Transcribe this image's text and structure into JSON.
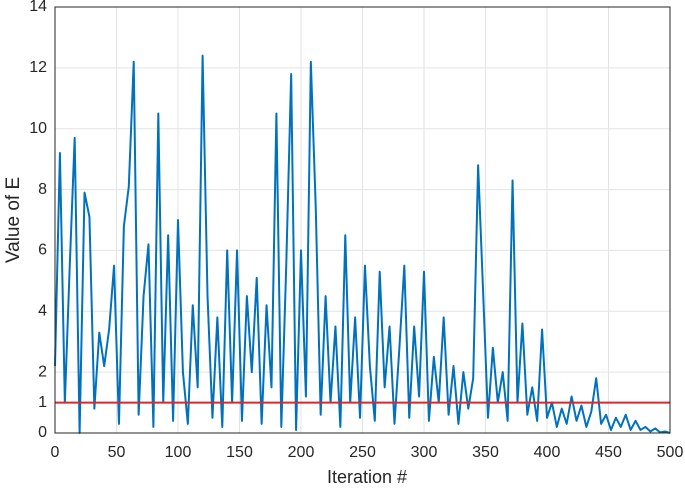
{
  "chart_data": {
    "type": "line",
    "xlabel": "Iteration #",
    "ylabel": "Value of E",
    "x": [
      0,
      4,
      8,
      12,
      16,
      20,
      24,
      28,
      32,
      36,
      40,
      44,
      48,
      52,
      56,
      60,
      64,
      68,
      72,
      76,
      80,
      84,
      88,
      92,
      96,
      100,
      104,
      108,
      112,
      116,
      120,
      124,
      128,
      132,
      136,
      140,
      144,
      148,
      152,
      156,
      160,
      164,
      168,
      172,
      176,
      180,
      184,
      188,
      192,
      196,
      200,
      204,
      208,
      212,
      216,
      220,
      224,
      228,
      232,
      236,
      240,
      244,
      248,
      252,
      256,
      260,
      264,
      268,
      272,
      276,
      280,
      284,
      288,
      292,
      296,
      300,
      304,
      308,
      312,
      316,
      320,
      324,
      328,
      332,
      336,
      340,
      344,
      348,
      352,
      356,
      360,
      364,
      368,
      372,
      376,
      380,
      384,
      388,
      392,
      396,
      400,
      404,
      408,
      412,
      416,
      420,
      424,
      428,
      432,
      436,
      440,
      444,
      448,
      452,
      456,
      460,
      464,
      468,
      472,
      476,
      480,
      484,
      488,
      492,
      496,
      500
    ],
    "series": [
      {
        "color": "#0072bd",
        "values": [
          2.2,
          9.2,
          1.0,
          5.5,
          9.7,
          0.0,
          7.9,
          7.1,
          0.8,
          3.3,
          2.2,
          3.4,
          5.5,
          0.3,
          6.8,
          8.1,
          12.2,
          0.6,
          4.5,
          6.2,
          0.2,
          10.5,
          1.0,
          6.5,
          0.4,
          7.0,
          2.0,
          0.3,
          4.2,
          1.5,
          12.4,
          4.5,
          0.5,
          3.8,
          0.2,
          6.0,
          1.0,
          6.0,
          0.4,
          4.5,
          2.0,
          5.1,
          0.3,
          4.2,
          1.5,
          10.5,
          0.2,
          5.5,
          11.8,
          0.1,
          6.0,
          1.2,
          12.2,
          7.4,
          0.6,
          4.5,
          1.0,
          3.5,
          0.2,
          6.5,
          1.0,
          3.8,
          0.5,
          5.5,
          2.2,
          0.4,
          5.3,
          1.5,
          3.5,
          0.3,
          2.8,
          5.5,
          0.5,
          3.5,
          1.2,
          5.3,
          0.4,
          2.5,
          1.0,
          3.8,
          0.6,
          2.2,
          0.3,
          2.0,
          0.8,
          1.8,
          8.8,
          4.7,
          0.5,
          2.8,
          1.0,
          2.0,
          0.4,
          8.3,
          1.0,
          3.6,
          0.6,
          1.5,
          0.4,
          3.4,
          0.5,
          1.0,
          0.2,
          0.8,
          0.3,
          1.2,
          0.4,
          0.9,
          0.2,
          0.7,
          1.8,
          0.3,
          0.6,
          0.1,
          0.5,
          0.2,
          0.6,
          0.1,
          0.4,
          0.1,
          0.2,
          0.05,
          0.15,
          0.02,
          0.05,
          0.0
        ]
      }
    ],
    "hline": {
      "value": 1,
      "color": "#e0242b"
    },
    "xlim": [
      0,
      500
    ],
    "xticks": [
      0,
      50,
      100,
      150,
      200,
      250,
      300,
      350,
      400,
      450,
      500
    ],
    "ylim": [
      0,
      14
    ],
    "yticks": [
      0,
      1,
      2,
      4,
      6,
      8,
      10,
      12,
      14
    ],
    "grid": true
  }
}
